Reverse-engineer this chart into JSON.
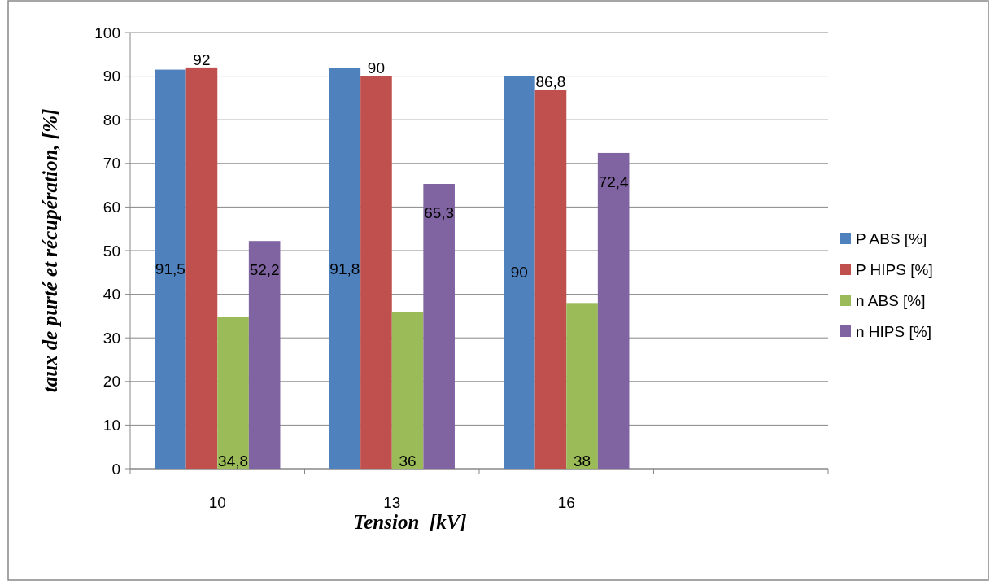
{
  "chart_data": {
    "type": "bar",
    "ylabel": "taux de purté et récupération, [%]",
    "xlabel": "Tension  [kV]",
    "categories": [
      "10",
      "13",
      "16",
      null
    ],
    "series": [
      {
        "name": "P ABS [%]",
        "color": "#4f81bd",
        "values": [
          91.5,
          91.8,
          90,
          null
        ],
        "value_labels": [
          "91,5",
          "91,8",
          "90",
          null
        ]
      },
      {
        "name": "P HIPS [%]",
        "color": "#c0504d",
        "values": [
          92,
          90,
          86.8,
          null
        ],
        "value_labels": [
          "92",
          "90",
          "86,8",
          null
        ]
      },
      {
        "name": "n ABS [%]",
        "color": "#9bbb59",
        "values": [
          34.8,
          36,
          38,
          null
        ],
        "value_labels": [
          "34,8",
          "36",
          "38",
          null
        ]
      },
      {
        "name": "n HIPS [%]",
        "color": "#8064a2",
        "values": [
          52.2,
          65.3,
          72.4,
          null
        ],
        "value_labels": [
          "52,2",
          "65,3",
          "72,4",
          null
        ]
      }
    ],
    "ylim": [
      0,
      100
    ],
    "yticks": [
      0,
      10,
      20,
      30,
      40,
      50,
      60,
      70,
      80,
      90,
      100
    ],
    "grid": "y",
    "legend": "right"
  }
}
